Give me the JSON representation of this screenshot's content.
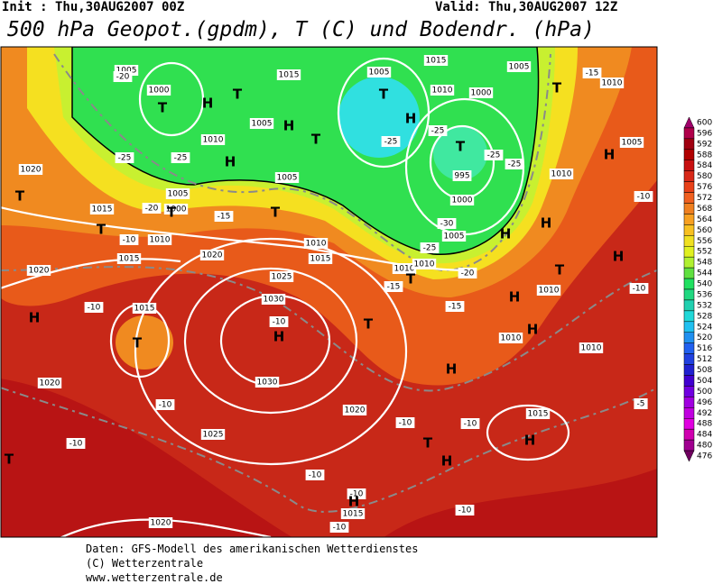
{
  "header": {
    "init": "Init : Thu,30AUG2007 00Z",
    "valid": "Valid: Thu,30AUG2007 12Z",
    "title": "500 hPa Geopot.(gpdm), T (C) und Bodendr. (hPa)"
  },
  "map": {
    "pressure_labels": [
      "1005",
      "1000",
      "1015",
      "1005",
      "1015",
      "1010",
      "1000",
      "1005",
      "1010",
      "1005",
      "1005",
      "1000",
      "1010",
      "1015",
      "1020",
      "1015",
      "1020",
      "1025",
      "1030",
      "1030",
      "1020",
      "1015",
      "1020",
      "1025",
      "1020",
      "1020",
      "1015",
      "1010",
      "1015",
      "1005",
      "1010",
      "1005",
      "995",
      "1000",
      "1005",
      "1010",
      "1010",
      "1010",
      "1010",
      "1010",
      "1015",
      "1010"
    ],
    "temperature_labels": [
      "-20",
      "-25",
      "-25",
      "-20",
      "-15",
      "-25",
      "-25",
      "-25",
      "-25",
      "-30",
      "-25",
      "-20",
      "-15",
      "-15",
      "-10",
      "-10",
      "-10",
      "-10",
      "-10",
      "-10",
      "-10",
      "-10",
      "-10",
      "-10",
      "-10",
      "-10",
      "-15",
      "-5",
      "-10"
    ],
    "centers": [
      "T",
      "H",
      "T",
      "H",
      "T",
      "H",
      "T",
      "H",
      "T",
      "T",
      "H",
      "T",
      "T",
      "T",
      "T",
      "H",
      "H",
      "T",
      "H",
      "T",
      "H",
      "H",
      "T",
      "H",
      "T",
      "H",
      "H",
      "H",
      "T",
      "H",
      "H",
      "T"
    ],
    "colorbar": {
      "ticks": [
        600,
        596,
        592,
        588,
        584,
        580,
        576,
        572,
        568,
        564,
        560,
        556,
        552,
        548,
        544,
        540,
        536,
        532,
        528,
        524,
        520,
        516,
        512,
        508,
        504,
        500,
        496,
        492,
        488,
        484,
        480,
        476
      ],
      "colors": [
        "#a0006a",
        "#b0004a",
        "#a00010",
        "#b00000",
        "#c81010",
        "#d82818",
        "#e84018",
        "#f06020",
        "#f08020",
        "#f8a020",
        "#f8c020",
        "#f0e020",
        "#e0f020",
        "#b0f030",
        "#60e040",
        "#20e060",
        "#20d880",
        "#20d0b0",
        "#20d8d8",
        "#20c0f0",
        "#2090f0",
        "#2060f0",
        "#2040e0",
        "#2020d0",
        "#4000d0",
        "#7000e0",
        "#a000e0",
        "#c000e0",
        "#e000e0",
        "#d000b0",
        "#a00090",
        "#700060"
      ]
    }
  },
  "footer": [
    "Daten: GFS-Modell des amerikanischen Wetterdienstes",
    "(C) Wetterzentrale",
    "www.wetterzentrale.de"
  ]
}
